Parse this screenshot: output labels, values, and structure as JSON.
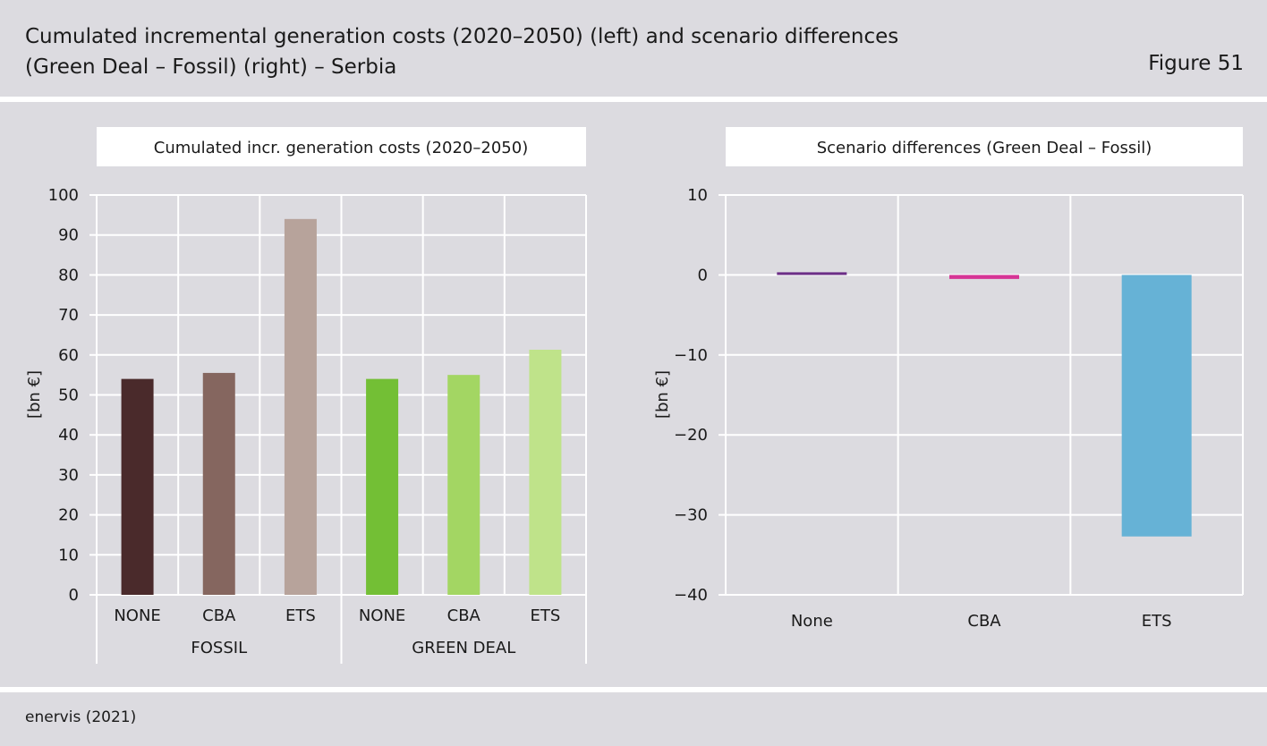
{
  "header": {
    "title_line1": "Cumulated incremental generation costs (2020–2050) (left) and scenario differences",
    "title_line2": "(Green Deal – Fossil) (right) – Serbia",
    "figure": "Figure 51"
  },
  "footer": {
    "source": "enervis (2021)"
  },
  "chart_data": [
    {
      "type": "bar",
      "title": "Cumulated incr. generation costs (2020–2050)",
      "ylabel": "[bn €]",
      "ylim": [
        0,
        100
      ],
      "yticks": [
        0,
        10,
        20,
        30,
        40,
        50,
        60,
        70,
        80,
        90,
        100
      ],
      "categories": [
        "NONE",
        "CBA",
        "ETS",
        "NONE",
        "CBA",
        "ETS"
      ],
      "groups": [
        {
          "label": "FOSSIL",
          "span": [
            0,
            2
          ]
        },
        {
          "label": "GREEN DEAL",
          "span": [
            3,
            5
          ]
        }
      ],
      "values": [
        54,
        55.5,
        94,
        54,
        55,
        61.3
      ],
      "colors": [
        "#4a2a2b",
        "#85665f",
        "#b7a39b",
        "#73bf35",
        "#a3d663",
        "#bfe38a"
      ],
      "grid": true
    },
    {
      "type": "bar",
      "title": "Scenario differences (Green Deal – Fossil)",
      "ylabel": "[bn €]",
      "ylim": [
        -40,
        10
      ],
      "yticks": [
        10,
        0,
        -10,
        -20,
        -30,
        -40
      ],
      "categories": [
        "None",
        "CBA",
        "ETS"
      ],
      "values": [
        0.3,
        -0.5,
        -32.7
      ],
      "colors": [
        "#6b2d86",
        "#d63495",
        "#66b2d6"
      ],
      "grid": true
    }
  ]
}
